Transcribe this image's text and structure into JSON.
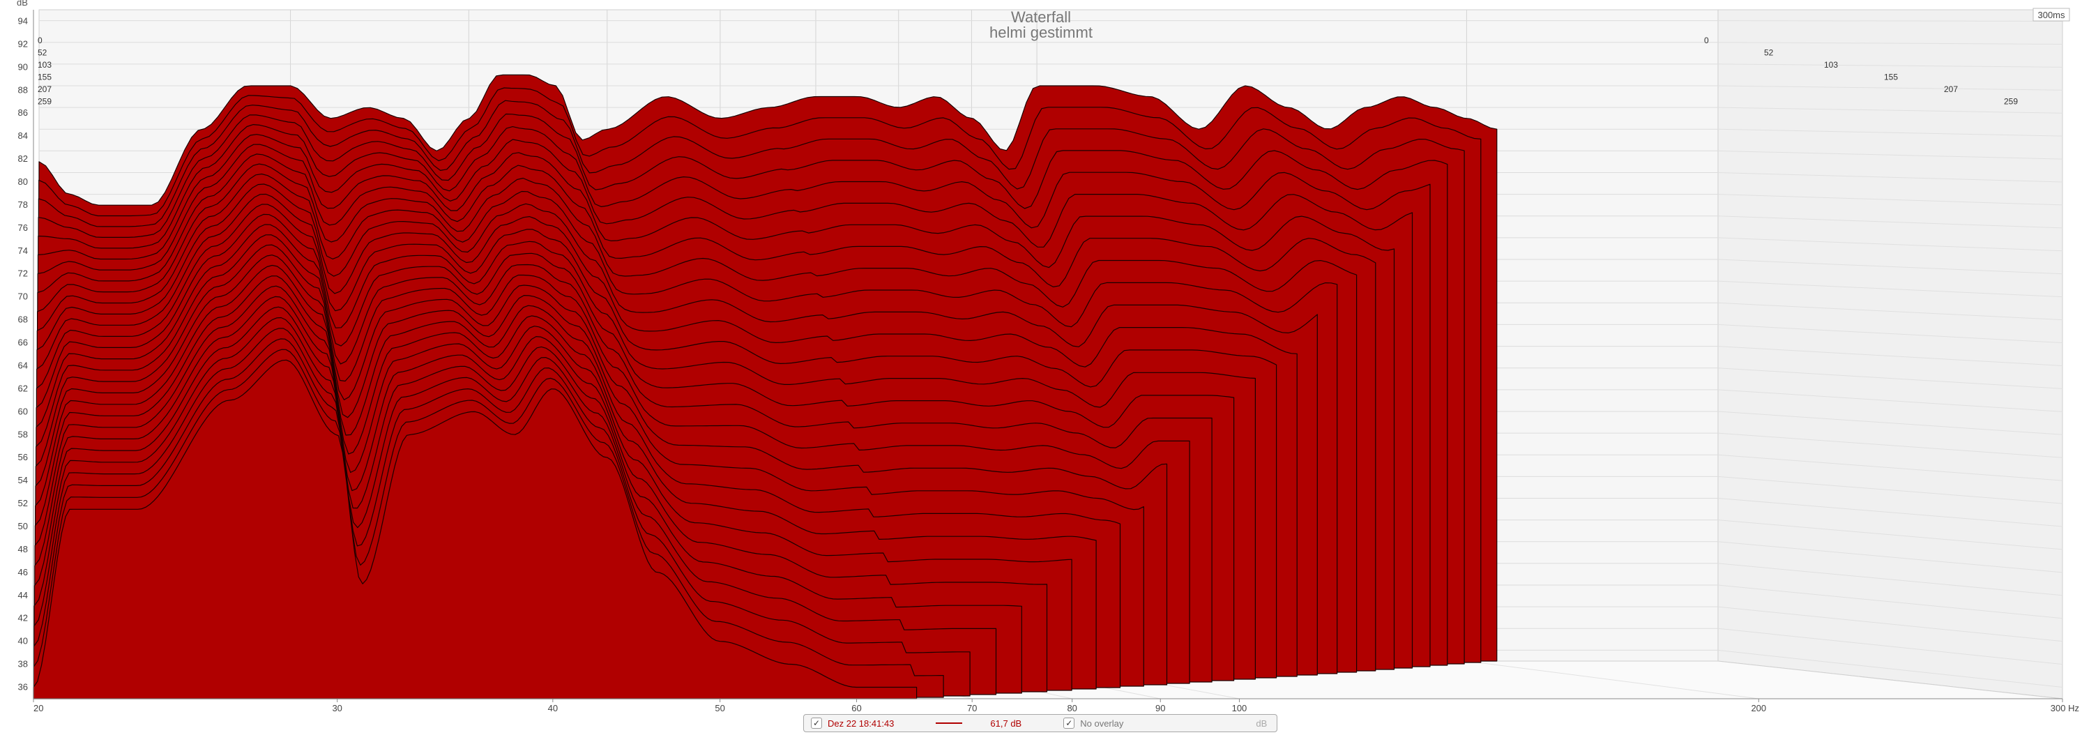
{
  "chart_data": {
    "type": "area",
    "title": "Waterfall",
    "subtitle": "helmi gestimmt",
    "ylabel": "dB",
    "xlabel_unit": "Hz",
    "x_scale": "log",
    "xlim": [
      20,
      300
    ],
    "ylim": [
      35,
      95
    ],
    "x_ticks": [
      "20",
      "30",
      "40",
      "50",
      "60",
      "70",
      "80",
      "90",
      "100",
      "200",
      "300 Hz"
    ],
    "y_ticks": [
      "36",
      "38",
      "40",
      "42",
      "44",
      "46",
      "48",
      "50",
      "52",
      "54",
      "56",
      "58",
      "60",
      "62",
      "64",
      "66",
      "68",
      "70",
      "72",
      "74",
      "76",
      "78",
      "80",
      "82",
      "84",
      "86",
      "88",
      "90",
      "92",
      "94"
    ],
    "depth_label": "300ms",
    "time_labels_ms": [
      "0",
      "52",
      "103",
      "155",
      "207",
      "259"
    ],
    "slice_count": 28,
    "front_slice_freqs_hz": [
      20,
      21,
      23,
      26,
      28,
      30,
      31,
      33,
      36,
      38,
      40,
      43,
      46,
      50,
      55,
      60,
      65
    ],
    "front_slice_db": [
      36,
      51.5,
      51.5,
      61,
      64.5,
      58,
      45,
      58,
      60,
      58,
      62,
      56,
      46,
      40,
      38,
      36,
      36
    ],
    "back_slice_freqs_hz": [
      20,
      21,
      22,
      24,
      26,
      28,
      30,
      32,
      34,
      36,
      38,
      40,
      42,
      44,
      46,
      48,
      50,
      55,
      60,
      65,
      70,
      75,
      80,
      85,
      90,
      95,
      100,
      110,
      120,
      130,
      140,
      150,
      160,
      170,
      180,
      190,
      200,
      210
    ],
    "back_slice_db": [
      81,
      78,
      77,
      77,
      84,
      88,
      88,
      85,
      86,
      85,
      82,
      85,
      89,
      89,
      88,
      83,
      84,
      87,
      85,
      86,
      87,
      87,
      86,
      87,
      85,
      82,
      88,
      88,
      87,
      84,
      88,
      86,
      84,
      86,
      87,
      86,
      85,
      84
    ],
    "series_color": "#b00000"
  },
  "legend": {
    "checkbox_mark": "✓",
    "measurement": "Dez 22 18:41:43",
    "value": "61,7 dB",
    "overlay": "No overlay",
    "unit": "dB"
  }
}
